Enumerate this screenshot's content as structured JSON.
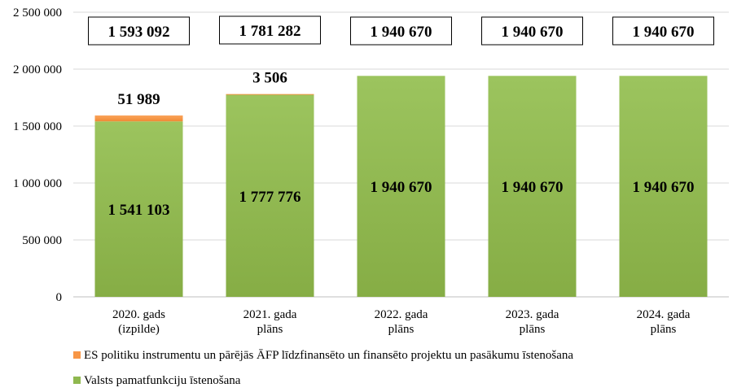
{
  "chart_data": {
    "type": "bar",
    "stacked": true,
    "categories": [
      [
        "2020. gads",
        "(izpilde)"
      ],
      [
        "2021. gada",
        "plāns"
      ],
      [
        "2022. gada",
        "plāns"
      ],
      [
        "2023. gada",
        "plāns"
      ],
      [
        "2024. gada",
        "plāns"
      ]
    ],
    "series": [
      {
        "name": "Valsts pamatfunkciju īstenošana",
        "color": "#8fb84f",
        "values": [
          1541103,
          1777776,
          1940670,
          1940670,
          1940670
        ],
        "labels": [
          "1 541 103",
          "1 777 776",
          "1 940 670",
          "1 940 670",
          "1 940 670"
        ]
      },
      {
        "name": "ES politiku instrumentu un pārējās ĀFP līdzfinansēto un finansēto projektu un pasākumu īstenošana",
        "color": "#f79646",
        "values": [
          51989,
          3506,
          0,
          0,
          0
        ],
        "labels": [
          "51 989",
          "3 506",
          "",
          "",
          ""
        ]
      }
    ],
    "totals": [
      1593092,
      1781282,
      1940670,
      1940670,
      1940670
    ],
    "total_labels": [
      "1 593 092",
      "1 781 282",
      "1 940 670",
      "1 940 670",
      "1 940 670"
    ],
    "ylim": [
      0,
      2500000
    ],
    "yticks": [
      0,
      500000,
      1000000,
      1500000,
      2000000,
      2500000
    ],
    "ytick_labels": [
      "0",
      "500 000",
      "1 000 000",
      "1 500 000",
      "2 000 000",
      "2 500 000"
    ],
    "grid": true,
    "legend": "bottom",
    "title": "",
    "xlabel": "",
    "ylabel": ""
  },
  "legend": {
    "orange_label": "ES politiku instrumentu un pārējās ĀFP līdzfinansēto un finansēto projektu un pasākumu īstenošana",
    "green_label": "Valsts pamatfunkciju īstenošana"
  }
}
